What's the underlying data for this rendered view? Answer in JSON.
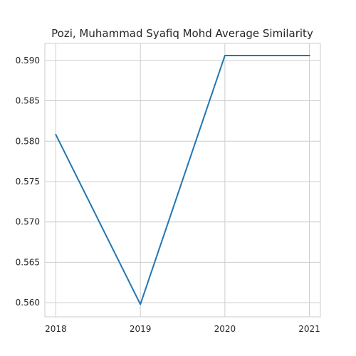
{
  "chart_data": {
    "type": "line",
    "title": "Pozi, Muhammad Syafiq Mohd Average Similarity",
    "xlabel": "",
    "ylabel": "",
    "x": [
      "2018",
      "2019",
      "2020",
      "2021"
    ],
    "series": [
      {
        "name": "Average Similarity",
        "values": [
          0.5808,
          0.5598,
          0.5906,
          0.5906
        ]
      }
    ],
    "xlim": [
      2017.87,
      2021.13
    ],
    "ylim": [
      0.55825,
      0.5921
    ],
    "yticks": [
      0.56,
      0.565,
      0.57,
      0.575,
      0.58,
      0.585,
      0.59
    ],
    "ytick_labels": [
      "0.560",
      "0.565",
      "0.570",
      "0.575",
      "0.580",
      "0.585",
      "0.590"
    ],
    "grid": true,
    "line_color": "#1f77b4"
  }
}
